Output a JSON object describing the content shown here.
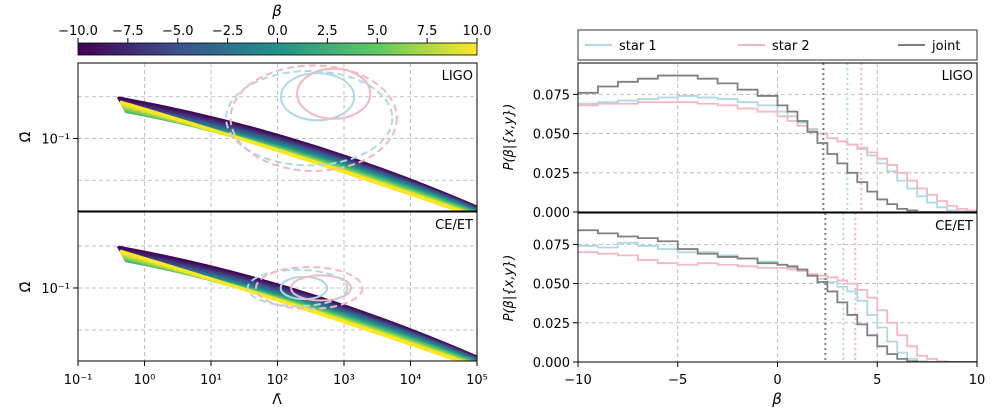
{
  "chart_data": [
    {
      "type": "heatmap",
      "panels": [
        "LIGO",
        "CE/ET"
      ],
      "xlabel": "Λ̄",
      "ylabel": "Ω̄",
      "xscale": "log",
      "yscale": "log",
      "xlim": [
        0.1,
        100000
      ],
      "ylim": [
        0.03,
        0.35
      ],
      "xtick_labels": [
        "10⁻¹",
        "10⁰",
        "10¹",
        "10²",
        "10³",
        "10⁴",
        "10⁵"
      ],
      "ytick_labels": [
        "10⁻¹"
      ],
      "colorbar": {
        "label": "β",
        "range": [
          -10,
          10
        ],
        "tick_labels": [
          "−10.0",
          "−7.5",
          "−5.0",
          "−2.5",
          "0.0",
          "2.5",
          "5.0",
          "7.5",
          "10.0"
        ],
        "colormap": [
          "#440154",
          "#3b528b",
          "#21918c",
          "#5ec962",
          "#fde725"
        ]
      },
      "band": {
        "start": [
          0.4,
          0.2
        ],
        "upper_end": [
          100000,
          0.032
        ],
        "lower_end": [
          100000,
          0.03
        ]
      },
      "contours": {
        "LIGO": [
          {
            "series": "star 1",
            "level": "inner",
            "center": [
              400,
              0.2
            ],
            "half_width_dex": 0.55,
            "half_height_dex": 0.17
          },
          {
            "series": "star 2",
            "level": "inner",
            "center": [
              700,
              0.21
            ],
            "half_width_dex": 0.55,
            "half_height_dex": 0.18
          },
          {
            "series": "star 1",
            "level": "outer",
            "center": [
              300,
              0.14
            ],
            "half_width_dex": 1.25,
            "half_height_dex": 0.34
          },
          {
            "series": "star 2",
            "level": "outer",
            "center": [
              350,
              0.14
            ],
            "half_width_dex": 1.25,
            "half_height_dex": 0.38
          }
        ],
        "CE/ET": [
          {
            "series": "star 1",
            "level": "inner",
            "center": [
              250,
              0.1
            ],
            "half_width_dex": 0.35,
            "half_height_dex": 0.08
          },
          {
            "series": "star 2",
            "level": "inner",
            "center": [
              450,
              0.1
            ],
            "half_width_dex": 0.45,
            "half_height_dex": 0.09
          },
          {
            "series": "star 1",
            "level": "outer",
            "center": [
              200,
              0.1
            ],
            "half_width_dex": 0.75,
            "half_height_dex": 0.13
          },
          {
            "series": "star 2",
            "level": "outer",
            "center": [
              300,
              0.1
            ],
            "half_width_dex": 0.8,
            "half_height_dex": 0.15
          }
        ]
      }
    },
    {
      "type": "line",
      "drawstyle": "steps",
      "panels": [
        "LIGO",
        "CE/ET"
      ],
      "xlabel": "β",
      "ylabel": "P(β|{x,y})",
      "xlim": [
        -10,
        10
      ],
      "ylim": [
        0,
        0.095
      ],
      "xtick_labels": [
        "−10",
        "−5",
        "0",
        "5",
        "10"
      ],
      "ytick_labels": [
        "0.000",
        "0.025",
        "0.050",
        "0.075"
      ],
      "legend": {
        "position": "top",
        "entries": [
          "star 1",
          "star 2",
          "joint"
        ]
      },
      "x": [
        -10,
        -9,
        -8,
        -7,
        -6,
        -5,
        -4,
        -3,
        -2,
        -1,
        0,
        0.5,
        1,
        1.5,
        2,
        2.5,
        3,
        3.5,
        4,
        4.5,
        5,
        5.5,
        6,
        6.5,
        7,
        7.5,
        8,
        8.5,
        9,
        9.5,
        10
      ],
      "series": [
        {
          "name": "star 1",
          "panel": "LIGO",
          "color": "#add8e6",
          "values": [
            0.069,
            0.07,
            0.071,
            0.072,
            0.073,
            0.074,
            0.073,
            0.072,
            0.07,
            0.068,
            0.064,
            0.061,
            0.057,
            0.053,
            0.05,
            0.047,
            0.045,
            0.043,
            0.04,
            0.036,
            0.031,
            0.026,
            0.02,
            0.015,
            0.01,
            0.006,
            0.003,
            0.001,
            0.0005,
            0,
            0
          ],
          "median_line": 3.5
        },
        {
          "name": "star 2",
          "panel": "LIGO",
          "color": "#f4b6c2",
          "values": [
            0.068,
            0.069,
            0.069,
            0.07,
            0.07,
            0.07,
            0.069,
            0.068,
            0.066,
            0.064,
            0.061,
            0.058,
            0.055,
            0.052,
            0.05,
            0.047,
            0.045,
            0.043,
            0.041,
            0.038,
            0.034,
            0.03,
            0.025,
            0.02,
            0.015,
            0.011,
            0.007,
            0.004,
            0.002,
            0.001,
            0
          ],
          "median_line": 4.2
        },
        {
          "name": "joint",
          "panel": "LIGO",
          "color": "#7f7f7f",
          "values": [
            0.076,
            0.08,
            0.083,
            0.085,
            0.087,
            0.087,
            0.085,
            0.082,
            0.078,
            0.074,
            0.068,
            0.064,
            0.058,
            0.051,
            0.044,
            0.037,
            0.031,
            0.025,
            0.019,
            0.013,
            0.008,
            0.005,
            0.002,
            0.001,
            0,
            0,
            0,
            0,
            0,
            0,
            0
          ],
          "median_line": 2.3
        },
        {
          "name": "star 1",
          "panel": "CE/ET",
          "color": "#add8e6",
          "values": [
            0.074,
            0.073,
            0.076,
            0.074,
            0.072,
            0.07,
            0.07,
            0.068,
            0.066,
            0.064,
            0.062,
            0.06,
            0.058,
            0.055,
            0.053,
            0.051,
            0.048,
            0.045,
            0.039,
            0.03,
            0.022,
            0.013,
            0.006,
            0.002,
            0.0005,
            0,
            0,
            0,
            0,
            0,
            0
          ],
          "median_line": 3.3
        },
        {
          "name": "star 2",
          "panel": "CE/ET",
          "color": "#f4b6c2",
          "values": [
            0.07,
            0.069,
            0.068,
            0.065,
            0.063,
            0.062,
            0.063,
            0.062,
            0.061,
            0.06,
            0.06,
            0.059,
            0.058,
            0.056,
            0.055,
            0.054,
            0.052,
            0.05,
            0.046,
            0.041,
            0.033,
            0.025,
            0.017,
            0.01,
            0.004,
            0.002,
            0.0005,
            0,
            0,
            0,
            0
          ],
          "median_line": 3.9
        },
        {
          "name": "joint",
          "panel": "CE/ET",
          "color": "#7f7f7f",
          "values": [
            0.084,
            0.082,
            0.08,
            0.079,
            0.077,
            0.072,
            0.069,
            0.067,
            0.066,
            0.063,
            0.062,
            0.061,
            0.059,
            0.055,
            0.051,
            0.045,
            0.038,
            0.03,
            0.024,
            0.017,
            0.01,
            0.005,
            0.002,
            0.0005,
            0,
            0,
            0,
            0,
            0,
            0,
            0
          ],
          "median_line": 2.4
        }
      ]
    }
  ]
}
